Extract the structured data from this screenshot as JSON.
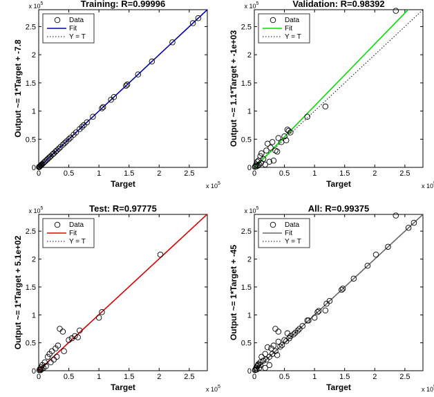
{
  "chart_data": [
    {
      "type": "scatter",
      "title": "Training: R=0.99996",
      "xlabel": "Target",
      "ylabel": "Output ~= 1*Target + -7.8",
      "x_exponent_label": "x 10",
      "y_exponent_label": "x 10",
      "exponent": "5",
      "xlim": [
        0,
        2.8
      ],
      "ylim": [
        0,
        2.8
      ],
      "xticks": [
        "0",
        "0.5",
        "1",
        "1.5",
        "2",
        "2.5"
      ],
      "yticks": [
        "0",
        "0.5",
        "1",
        "1.5",
        "2",
        "2.5"
      ],
      "grid": false,
      "legend_position": "top-left",
      "legend": [
        "Data",
        "Fit",
        "Y = T"
      ],
      "fit_color": "#0000aa",
      "fit": {
        "slope": 1.0,
        "intercept": -7.8e-05
      },
      "data": [
        [
          0.005,
          0.005
        ],
        [
          0.01,
          0.01
        ],
        [
          0.015,
          0.015
        ],
        [
          0.02,
          0.02
        ],
        [
          0.03,
          0.03
        ],
        [
          0.04,
          0.04
        ],
        [
          0.05,
          0.05
        ],
        [
          0.06,
          0.06
        ],
        [
          0.08,
          0.08
        ],
        [
          0.1,
          0.1
        ],
        [
          0.12,
          0.12
        ],
        [
          0.14,
          0.14
        ],
        [
          0.16,
          0.16
        ],
        [
          0.18,
          0.18
        ],
        [
          0.2,
          0.2
        ],
        [
          0.23,
          0.23
        ],
        [
          0.25,
          0.25
        ],
        [
          0.28,
          0.28
        ],
        [
          0.3,
          0.3
        ],
        [
          0.33,
          0.33
        ],
        [
          0.36,
          0.36
        ],
        [
          0.4,
          0.4
        ],
        [
          0.43,
          0.43
        ],
        [
          0.46,
          0.46
        ],
        [
          0.5,
          0.5
        ],
        [
          0.53,
          0.53
        ],
        [
          0.58,
          0.58
        ],
        [
          0.62,
          0.62
        ],
        [
          0.68,
          0.68
        ],
        [
          0.72,
          0.72
        ],
        [
          0.75,
          0.75
        ],
        [
          0.8,
          0.8
        ],
        [
          0.9,
          0.9
        ],
        [
          1.05,
          1.05
        ],
        [
          1.07,
          1.07
        ],
        [
          1.2,
          1.2
        ],
        [
          1.25,
          1.25
        ],
        [
          1.45,
          1.45
        ],
        [
          1.47,
          1.47
        ],
        [
          1.65,
          1.65
        ],
        [
          1.88,
          1.88
        ],
        [
          2.22,
          2.22
        ],
        [
          2.56,
          2.56
        ],
        [
          2.65,
          2.65
        ]
      ]
    },
    {
      "type": "scatter",
      "title": "Validation: R=0.98392",
      "xlabel": "Target",
      "ylabel": "Output ~= 1.1*Target + -1e+03",
      "x_exponent_label": "x 10",
      "y_exponent_label": "x 10",
      "exponent": "5",
      "xlim": [
        0,
        2.8
      ],
      "ylim": [
        0,
        2.8
      ],
      "xticks": [
        "0",
        "0.5",
        "1",
        "1.5",
        "2",
        "2.5"
      ],
      "yticks": [
        "0",
        "0.5",
        "1",
        "1.5",
        "2",
        "2.5"
      ],
      "grid": false,
      "legend_position": "top-left",
      "legend": [
        "Data",
        "Fit",
        "Y = T"
      ],
      "fit_color": "#00dd00",
      "fit": {
        "slope": 1.1,
        "intercept": -0.01
      },
      "data": [
        [
          0.01,
          0.01
        ],
        [
          0.02,
          0.02
        ],
        [
          0.03,
          0.05
        ],
        [
          0.04,
          0.02
        ],
        [
          0.05,
          0.1
        ],
        [
          0.06,
          0.03
        ],
        [
          0.07,
          0.12
        ],
        [
          0.08,
          0.05
        ],
        [
          0.1,
          0.2
        ],
        [
          0.11,
          0.08
        ],
        [
          0.12,
          0.25
        ],
        [
          0.15,
          0.15
        ],
        [
          0.18,
          0.05
        ],
        [
          0.2,
          0.3
        ],
        [
          0.22,
          0.42
        ],
        [
          0.25,
          0.1
        ],
        [
          0.27,
          0.35
        ],
        [
          0.3,
          0.45
        ],
        [
          0.32,
          0.12
        ],
        [
          0.35,
          0.3
        ],
        [
          0.38,
          0.28
        ],
        [
          0.4,
          0.52
        ],
        [
          0.45,
          0.45
        ],
        [
          0.5,
          0.55
        ],
        [
          0.53,
          0.48
        ],
        [
          0.55,
          0.67
        ],
        [
          0.57,
          0.65
        ],
        [
          0.6,
          0.62
        ],
        [
          0.88,
          0.9
        ],
        [
          1.18,
          1.08
        ],
        [
          2.35,
          2.78
        ]
      ]
    },
    {
      "type": "scatter",
      "title": "Test: R=0.97775",
      "xlabel": "Target",
      "ylabel": "Output ~= 1*Target + 5.1e+02",
      "x_exponent_label": "x 10",
      "y_exponent_label": "x 10",
      "exponent": "5",
      "xlim": [
        0,
        2.8
      ],
      "ylim": [
        0,
        2.8
      ],
      "xticks": [
        "0",
        "0.5",
        "1",
        "1.5",
        "2",
        "2.5"
      ],
      "yticks": [
        "0",
        "0.5",
        "1",
        "1.5",
        "2",
        "2.5"
      ],
      "grid": false,
      "legend_position": "top-left",
      "legend": [
        "Data",
        "Fit",
        "Y = T"
      ],
      "fit_color": "#dd0000",
      "fit": {
        "slope": 1.0,
        "intercept": 0.0051
      },
      "data": [
        [
          0.01,
          0.01
        ],
        [
          0.02,
          0.03
        ],
        [
          0.03,
          0.01
        ],
        [
          0.04,
          0.06
        ],
        [
          0.05,
          0.03
        ],
        [
          0.06,
          0.1
        ],
        [
          0.08,
          0.05
        ],
        [
          0.1,
          0.15
        ],
        [
          0.12,
          0.08
        ],
        [
          0.15,
          0.25
        ],
        [
          0.18,
          0.3
        ],
        [
          0.2,
          0.15
        ],
        [
          0.22,
          0.35
        ],
        [
          0.25,
          0.2
        ],
        [
          0.28,
          0.4
        ],
        [
          0.3,
          0.25
        ],
        [
          0.32,
          0.45
        ],
        [
          0.35,
          0.75
        ],
        [
          0.4,
          0.7
        ],
        [
          0.42,
          0.35
        ],
        [
          0.5,
          0.55
        ],
        [
          0.55,
          0.58
        ],
        [
          0.6,
          0.62
        ],
        [
          0.65,
          0.6
        ],
        [
          0.68,
          0.72
        ],
        [
          1.0,
          0.95
        ],
        [
          1.05,
          1.05
        ],
        [
          2.02,
          2.08
        ]
      ]
    },
    {
      "type": "scatter",
      "title": "All: R=0.99375",
      "xlabel": "Target",
      "ylabel": "Output ~= 1*Target + -45",
      "x_exponent_label": "x 10",
      "y_exponent_label": "x 10",
      "exponent": "5",
      "xlim": [
        0,
        2.8
      ],
      "ylim": [
        0,
        2.8
      ],
      "xticks": [
        "0",
        "0.5",
        "1",
        "1.5",
        "2",
        "2.5"
      ],
      "yticks": [
        "0",
        "0.5",
        "1",
        "1.5",
        "2",
        "2.5"
      ],
      "grid": false,
      "legend_position": "top-left",
      "legend": [
        "Data",
        "Fit",
        "Y = T"
      ],
      "fit_color": "#666666",
      "fit": {
        "slope": 1.0,
        "intercept": -0.00045
      },
      "data": [
        [
          0.01,
          0.01
        ],
        [
          0.02,
          0.02
        ],
        [
          0.03,
          0.05
        ],
        [
          0.04,
          0.02
        ],
        [
          0.05,
          0.08
        ],
        [
          0.06,
          0.1
        ],
        [
          0.07,
          0.12
        ],
        [
          0.08,
          0.05
        ],
        [
          0.1,
          0.15
        ],
        [
          0.1,
          0.1
        ],
        [
          0.12,
          0.25
        ],
        [
          0.15,
          0.18
        ],
        [
          0.18,
          0.05
        ],
        [
          0.18,
          0.3
        ],
        [
          0.2,
          0.2
        ],
        [
          0.22,
          0.42
        ],
        [
          0.25,
          0.25
        ],
        [
          0.25,
          0.1
        ],
        [
          0.28,
          0.4
        ],
        [
          0.3,
          0.3
        ],
        [
          0.32,
          0.45
        ],
        [
          0.35,
          0.75
        ],
        [
          0.35,
          0.35
        ],
        [
          0.38,
          0.28
        ],
        [
          0.4,
          0.52
        ],
        [
          0.4,
          0.7
        ],
        [
          0.43,
          0.43
        ],
        [
          0.46,
          0.46
        ],
        [
          0.5,
          0.55
        ],
        [
          0.53,
          0.53
        ],
        [
          0.55,
          0.67
        ],
        [
          0.58,
          0.58
        ],
        [
          0.6,
          0.62
        ],
        [
          0.65,
          0.65
        ],
        [
          0.68,
          0.68
        ],
        [
          0.72,
          0.72
        ],
        [
          0.75,
          0.75
        ],
        [
          0.8,
          0.8
        ],
        [
          0.88,
          0.9
        ],
        [
          0.9,
          0.9
        ],
        [
          1.0,
          0.95
        ],
        [
          1.05,
          1.05
        ],
        [
          1.07,
          1.07
        ],
        [
          1.18,
          1.08
        ],
        [
          1.2,
          1.2
        ],
        [
          1.25,
          1.25
        ],
        [
          1.45,
          1.45
        ],
        [
          1.47,
          1.47
        ],
        [
          1.65,
          1.65
        ],
        [
          1.88,
          1.88
        ],
        [
          2.02,
          2.08
        ],
        [
          2.22,
          2.22
        ],
        [
          2.35,
          2.78
        ],
        [
          2.56,
          2.56
        ],
        [
          2.65,
          2.65
        ]
      ]
    }
  ]
}
